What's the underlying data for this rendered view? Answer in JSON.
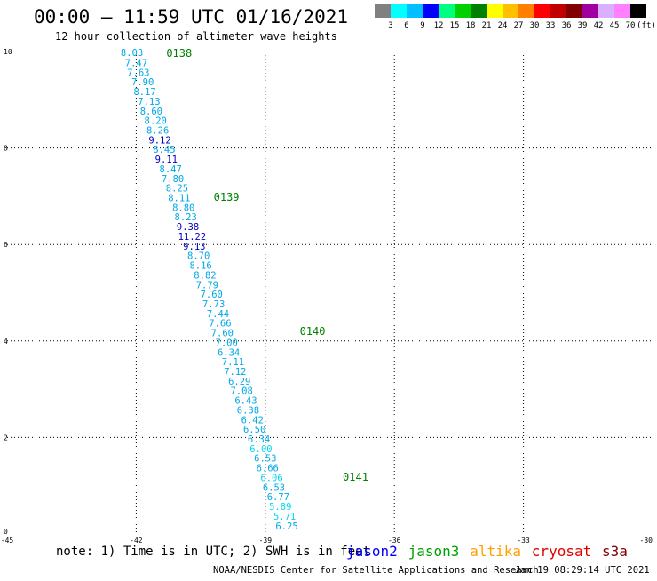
{
  "header": {
    "title": "00:00 – 11:59 UTC 01/16/2021",
    "subtitle": "12 hour collection of altimeter wave heights"
  },
  "colorbar": {
    "colors": [
      "#808080",
      "#00ffff",
      "#00c0ff",
      "#0000ff",
      "#00ff80",
      "#00d000",
      "#008000",
      "#ffff00",
      "#ffc000",
      "#ff8000",
      "#ff0000",
      "#c00000",
      "#800000",
      "#a000a0",
      "#d8b0ff",
      "#ff80ff",
      "#000000"
    ],
    "labels": [
      "3",
      "6",
      "9",
      "12",
      "15",
      "18",
      "21",
      "24",
      "27",
      "30",
      "33",
      "36",
      "39",
      "42",
      "45",
      "70",
      "(ft)"
    ]
  },
  "footer": {
    "note": "note: 1) Time is in UTC; 2) SWH is in feet",
    "satellites": [
      {
        "name": "jason2",
        "color": "#0000ff"
      },
      {
        "name": "jason3",
        "color": "#00a000"
      },
      {
        "name": "altika",
        "color": "#ffa000"
      },
      {
        "name": "cryosat",
        "color": "#e00000"
      },
      {
        "name": "s3a",
        "color": "#800000"
      }
    ],
    "credit": "NOAA/NESDIS Center for Satellite Applications and Research",
    "timestamp": "Jan 19 08:29:14 UTC 2021"
  },
  "chart_data": {
    "type": "scatter",
    "title": "00:00 – 11:59 UTC 01/16/2021",
    "subtitle": "12 hour collection of altimeter wave heights",
    "xlabel": "",
    "ylabel": "",
    "xlim": [
      -45,
      -30
    ],
    "ylim": [
      0,
      10
    ],
    "xticks": [
      "-45",
      "-42",
      "-39",
      "-36",
      "-33",
      "-30"
    ],
    "yticks": [
      "0",
      "2",
      "4",
      "6",
      "8",
      "10"
    ],
    "grid": true,
    "colors": {
      "light_blue": "#00a8e8",
      "cyan": "#00d8f0",
      "dark_blue": "#0000c0",
      "pass_label": "#008000"
    },
    "pass_labels": [
      {
        "text": "0138",
        "x": -41.3,
        "y": 9.98
      },
      {
        "text": "0139",
        "x": -40.2,
        "y": 7.0
      },
      {
        "text": "0140",
        "x": -38.2,
        "y": 4.22
      },
      {
        "text": "0141",
        "x": -37.2,
        "y": 1.2
      }
    ],
    "points": [
      {
        "x": -42.1,
        "y": 9.98,
        "v": "8.03",
        "c": "light_blue"
      },
      {
        "x": -42.0,
        "y": 9.77,
        "v": "7.47",
        "c": "light_blue"
      },
      {
        "x": -41.95,
        "y": 9.57,
        "v": "7.63",
        "c": "light_blue"
      },
      {
        "x": -41.85,
        "y": 9.37,
        "v": "7.90",
        "c": "light_blue"
      },
      {
        "x": -41.8,
        "y": 9.17,
        "v": "8.17",
        "c": "light_blue"
      },
      {
        "x": -41.7,
        "y": 8.97,
        "v": "7.13",
        "c": "light_blue"
      },
      {
        "x": -41.65,
        "y": 8.77,
        "v": "8.60",
        "c": "light_blue"
      },
      {
        "x": -41.55,
        "y": 8.57,
        "v": "8.20",
        "c": "light_blue"
      },
      {
        "x": -41.5,
        "y": 8.37,
        "v": "8.26",
        "c": "light_blue"
      },
      {
        "x": -41.45,
        "y": 8.17,
        "v": "9.12",
        "c": "dark_blue"
      },
      {
        "x": -41.35,
        "y": 7.97,
        "v": "8.45",
        "c": "light_blue"
      },
      {
        "x": -41.3,
        "y": 7.77,
        "v": "9.11",
        "c": "dark_blue"
      },
      {
        "x": -41.2,
        "y": 7.57,
        "v": "8.47",
        "c": "light_blue"
      },
      {
        "x": -41.15,
        "y": 7.37,
        "v": "7.80",
        "c": "light_blue"
      },
      {
        "x": -41.05,
        "y": 7.17,
        "v": "8.25",
        "c": "light_blue"
      },
      {
        "x": -41.0,
        "y": 6.97,
        "v": "8.11",
        "c": "light_blue"
      },
      {
        "x": -40.9,
        "y": 6.77,
        "v": "8.80",
        "c": "light_blue"
      },
      {
        "x": -40.85,
        "y": 6.57,
        "v": "8.23",
        "c": "light_blue"
      },
      {
        "x": -40.8,
        "y": 6.37,
        "v": "9.38",
        "c": "dark_blue"
      },
      {
        "x": -40.7,
        "y": 6.17,
        "v": "11.22",
        "c": "dark_blue"
      },
      {
        "x": -40.65,
        "y": 5.97,
        "v": "9.13",
        "c": "dark_blue"
      },
      {
        "x": -40.55,
        "y": 5.77,
        "v": "8.70",
        "c": "light_blue"
      },
      {
        "x": -40.5,
        "y": 5.57,
        "v": "8.16",
        "c": "light_blue"
      },
      {
        "x": -40.4,
        "y": 5.37,
        "v": "8.82",
        "c": "light_blue"
      },
      {
        "x": -40.35,
        "y": 5.17,
        "v": "7.79",
        "c": "light_blue"
      },
      {
        "x": -40.25,
        "y": 4.97,
        "v": "7.60",
        "c": "light_blue"
      },
      {
        "x": -40.2,
        "y": 4.77,
        "v": "7.73",
        "c": "light_blue"
      },
      {
        "x": -40.1,
        "y": 4.57,
        "v": "7.44",
        "c": "light_blue"
      },
      {
        "x": -40.05,
        "y": 4.37,
        "v": "7.66",
        "c": "light_blue"
      },
      {
        "x": -40.0,
        "y": 4.17,
        "v": "7.60",
        "c": "light_blue"
      },
      {
        "x": -39.9,
        "y": 3.97,
        "v": "7.00",
        "c": "light_blue"
      },
      {
        "x": -39.85,
        "y": 3.77,
        "v": "6.34",
        "c": "light_blue"
      },
      {
        "x": -39.75,
        "y": 3.57,
        "v": "7.11",
        "c": "light_blue"
      },
      {
        "x": -39.7,
        "y": 3.37,
        "v": "7.12",
        "c": "light_blue"
      },
      {
        "x": -39.6,
        "y": 3.17,
        "v": "6.29",
        "c": "light_blue"
      },
      {
        "x": -39.55,
        "y": 2.97,
        "v": "7.08",
        "c": "light_blue"
      },
      {
        "x": -39.45,
        "y": 2.77,
        "v": "6.43",
        "c": "light_blue"
      },
      {
        "x": -39.4,
        "y": 2.57,
        "v": "6.38",
        "c": "light_blue"
      },
      {
        "x": -39.3,
        "y": 2.37,
        "v": "6.42",
        "c": "light_blue"
      },
      {
        "x": -39.25,
        "y": 2.17,
        "v": "6.50",
        "c": "light_blue"
      },
      {
        "x": -39.15,
        "y": 1.97,
        "v": "6.34",
        "c": "light_blue"
      },
      {
        "x": -39.1,
        "y": 1.77,
        "v": "6.00",
        "c": "cyan"
      },
      {
        "x": -39.0,
        "y": 1.57,
        "v": "6.53",
        "c": "light_blue"
      },
      {
        "x": -38.95,
        "y": 1.37,
        "v": "6.66",
        "c": "light_blue"
      },
      {
        "x": -38.85,
        "y": 1.17,
        "v": "6.06",
        "c": "cyan"
      },
      {
        "x": -38.8,
        "y": 0.97,
        "v": "6.53",
        "c": "light_blue"
      },
      {
        "x": -38.7,
        "y": 0.77,
        "v": "6.77",
        "c": "light_blue"
      },
      {
        "x": -38.65,
        "y": 0.57,
        "v": "5.89",
        "c": "cyan"
      },
      {
        "x": -38.55,
        "y": 0.37,
        "v": "5.71",
        "c": "cyan"
      },
      {
        "x": -38.5,
        "y": 0.17,
        "v": "6.25",
        "c": "light_blue"
      }
    ]
  }
}
